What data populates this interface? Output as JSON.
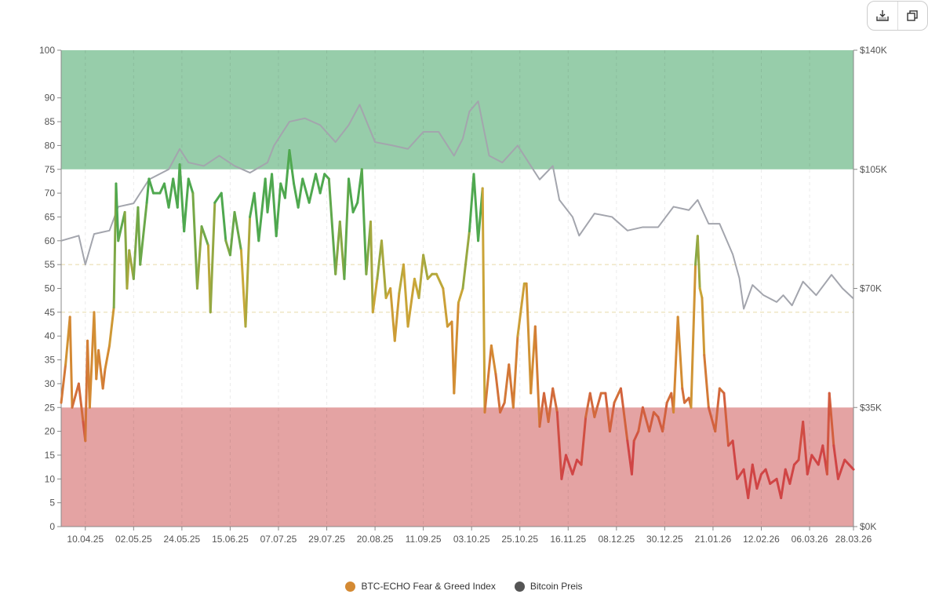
{
  "toolbar": {
    "download_icon": "download-icon",
    "copy_icon": "copy-icon"
  },
  "chart_data": {
    "type": "line",
    "title": "",
    "colors": {
      "green_zone": "#97cdaa",
      "red_zone": "#e4a3a3",
      "btc": "#a3a5ad",
      "fear": "#d04545",
      "neutral_low": "#d48a33",
      "neutral": "#c8a838",
      "greed": "#4fa84f",
      "guide": "#e8d9a8"
    },
    "x_ticks": [
      "10.04.25",
      "02.05.25",
      "24.05.25",
      "15.06.25",
      "07.07.25",
      "29.07.25",
      "20.08.25",
      "11.09.25",
      "03.10.25",
      "25.10.25",
      "16.11.25",
      "08.12.25",
      "30.12.25",
      "21.01.26",
      "12.02.26",
      "06.03.26",
      "28.03.26"
    ],
    "x_tick_days": [
      11,
      33,
      55,
      77,
      99,
      121,
      143,
      165,
      187,
      209,
      231,
      253,
      275,
      297,
      319,
      341,
      361
    ],
    "x_range_days": [
      0,
      361
    ],
    "y_left": {
      "ticks": [
        0,
        5,
        10,
        15,
        20,
        25,
        30,
        35,
        40,
        45,
        50,
        55,
        60,
        65,
        70,
        75,
        80,
        85,
        90,
        100
      ],
      "range": [
        0,
        100
      ]
    },
    "y_right": {
      "ticks": [
        "$0K",
        "$35K",
        "$70K",
        "$105K",
        "$140K"
      ],
      "tick_values": [
        0,
        35,
        70,
        105,
        140
      ],
      "range": [
        0,
        140
      ]
    },
    "zones": [
      {
        "from": 75,
        "to": 100,
        "name": "greed"
      },
      {
        "from": 0,
        "to": 25,
        "name": "fear"
      }
    ],
    "guides": [
      45,
      55
    ],
    "series": [
      {
        "name": "BTC-ECHO Fear & Greed Index",
        "axis": "left",
        "legend_color": "#d48a33",
        "points": [
          [
            0,
            26
          ],
          [
            2,
            34
          ],
          [
            4,
            44
          ],
          [
            5,
            25
          ],
          [
            8,
            30
          ],
          [
            10,
            22
          ],
          [
            11,
            18
          ],
          [
            12,
            39
          ],
          [
            13,
            25
          ],
          [
            15,
            45
          ],
          [
            16,
            31
          ],
          [
            17,
            37
          ],
          [
            19,
            29
          ],
          [
            20,
            33
          ],
          [
            22,
            38
          ],
          [
            24,
            46
          ],
          [
            25,
            72
          ],
          [
            26,
            60
          ],
          [
            29,
            66
          ],
          [
            30,
            50
          ],
          [
            31,
            58
          ],
          [
            33,
            52
          ],
          [
            35,
            67
          ],
          [
            36,
            55
          ],
          [
            39,
            68
          ],
          [
            40,
            73
          ],
          [
            42,
            70
          ],
          [
            45,
            70
          ],
          [
            47,
            72
          ],
          [
            49,
            67
          ],
          [
            51,
            73
          ],
          [
            53,
            67
          ],
          [
            54,
            76
          ],
          [
            56,
            62
          ],
          [
            58,
            73
          ],
          [
            60,
            70
          ],
          [
            62,
            50
          ],
          [
            64,
            63
          ],
          [
            67,
            59
          ],
          [
            68,
            45
          ],
          [
            70,
            68
          ],
          [
            73,
            70
          ],
          [
            75,
            60
          ],
          [
            77,
            57
          ],
          [
            79,
            66
          ],
          [
            82,
            58
          ],
          [
            84,
            42
          ],
          [
            86,
            65
          ],
          [
            88,
            70
          ],
          [
            90,
            60
          ],
          [
            93,
            73
          ],
          [
            94,
            66
          ],
          [
            96,
            74
          ],
          [
            98,
            61
          ],
          [
            100,
            72
          ],
          [
            102,
            69
          ],
          [
            104,
            79
          ],
          [
            106,
            72
          ],
          [
            108,
            67
          ],
          [
            110,
            73
          ],
          [
            113,
            68
          ],
          [
            116,
            74
          ],
          [
            118,
            70
          ],
          [
            120,
            74
          ],
          [
            122,
            73
          ],
          [
            125,
            53
          ],
          [
            127,
            64
          ],
          [
            129,
            52
          ],
          [
            131,
            73
          ],
          [
            133,
            66
          ],
          [
            135,
            68
          ],
          [
            137,
            75
          ],
          [
            139,
            53
          ],
          [
            141,
            64
          ],
          [
            142,
            45
          ],
          [
            144,
            52
          ],
          [
            146,
            60
          ],
          [
            148,
            48
          ],
          [
            150,
            50
          ],
          [
            152,
            39
          ],
          [
            154,
            49
          ],
          [
            156,
            55
          ],
          [
            158,
            42
          ],
          [
            161,
            52
          ],
          [
            163,
            48
          ],
          [
            165,
            57
          ],
          [
            167,
            52
          ],
          [
            169,
            53
          ],
          [
            171,
            53
          ],
          [
            174,
            50
          ],
          [
            176,
            42
          ],
          [
            178,
            43
          ],
          [
            179,
            28
          ],
          [
            181,
            47
          ],
          [
            183,
            50
          ],
          [
            186,
            62
          ],
          [
            188,
            74
          ],
          [
            190,
            60
          ],
          [
            192,
            71
          ],
          [
            193,
            24
          ],
          [
            196,
            38
          ],
          [
            198,
            32
          ],
          [
            200,
            24
          ],
          [
            202,
            26
          ],
          [
            204,
            34
          ],
          [
            206,
            25
          ],
          [
            208,
            40
          ],
          [
            211,
            51
          ],
          [
            212,
            51
          ],
          [
            214,
            28
          ],
          [
            216,
            42
          ],
          [
            218,
            21
          ],
          [
            220,
            28
          ],
          [
            222,
            22
          ],
          [
            224,
            29
          ],
          [
            226,
            24
          ],
          [
            228,
            10
          ],
          [
            230,
            15
          ],
          [
            233,
            11
          ],
          [
            235,
            14
          ],
          [
            237,
            13
          ],
          [
            239,
            23
          ],
          [
            241,
            28
          ],
          [
            243,
            23
          ],
          [
            246,
            28
          ],
          [
            248,
            28
          ],
          [
            250,
            20
          ],
          [
            252,
            26
          ],
          [
            254,
            28
          ],
          [
            255,
            29
          ],
          [
            258,
            18
          ],
          [
            260,
            11
          ],
          [
            261,
            18
          ],
          [
            263,
            20
          ],
          [
            265,
            25
          ],
          [
            268,
            20
          ],
          [
            270,
            24
          ],
          [
            272,
            23
          ],
          [
            274,
            20
          ],
          [
            276,
            26
          ],
          [
            278,
            28
          ],
          [
            279,
            24
          ],
          [
            281,
            44
          ],
          [
            283,
            29
          ],
          [
            284,
            26
          ],
          [
            286,
            27
          ],
          [
            287,
            25
          ],
          [
            289,
            55
          ],
          [
            290,
            61
          ],
          [
            291,
            50
          ],
          [
            292,
            48
          ],
          [
            293,
            36
          ],
          [
            295,
            25
          ],
          [
            298,
            20
          ],
          [
            300,
            29
          ],
          [
            302,
            28
          ],
          [
            304,
            17
          ],
          [
            306,
            18
          ],
          [
            308,
            10
          ],
          [
            311,
            12
          ],
          [
            313,
            6
          ],
          [
            315,
            13
          ],
          [
            317,
            8
          ],
          [
            319,
            11
          ],
          [
            321,
            12
          ],
          [
            323,
            9
          ],
          [
            326,
            10
          ],
          [
            328,
            6
          ],
          [
            330,
            12
          ],
          [
            332,
            9
          ],
          [
            334,
            13
          ],
          [
            336,
            14
          ],
          [
            338,
            22
          ],
          [
            340,
            11
          ],
          [
            342,
            15
          ],
          [
            345,
            13
          ],
          [
            347,
            17
          ],
          [
            349,
            11
          ],
          [
            350,
            28
          ],
          [
            352,
            17
          ],
          [
            354,
            10
          ],
          [
            357,
            14
          ],
          [
            359,
            13
          ],
          [
            361,
            12
          ]
        ]
      },
      {
        "name": "Bitcoin Preis",
        "axis": "right",
        "unit": "K USD",
        "legend_color": "#555555",
        "points": [
          [
            0,
            84
          ],
          [
            8,
            85.5
          ],
          [
            11,
            77
          ],
          [
            15,
            86
          ],
          [
            22,
            87
          ],
          [
            26,
            94
          ],
          [
            33,
            95
          ],
          [
            40,
            102
          ],
          [
            49,
            105
          ],
          [
            54,
            111
          ],
          [
            58,
            107
          ],
          [
            65,
            106
          ],
          [
            72,
            109
          ],
          [
            79,
            106
          ],
          [
            86,
            104
          ],
          [
            94,
            107
          ],
          [
            97,
            112
          ],
          [
            104,
            119
          ],
          [
            111,
            120
          ],
          [
            118,
            118
          ],
          [
            125,
            113
          ],
          [
            131,
            118
          ],
          [
            136,
            124
          ],
          [
            143,
            113
          ],
          [
            151,
            112
          ],
          [
            158,
            111
          ],
          [
            165,
            116
          ],
          [
            172,
            116
          ],
          [
            179,
            109
          ],
          [
            183,
            114
          ],
          [
            186,
            122
          ],
          [
            190,
            125
          ],
          [
            195,
            109
          ],
          [
            201,
            107
          ],
          [
            208,
            112
          ],
          [
            211,
            109
          ],
          [
            218,
            102
          ],
          [
            224,
            106
          ],
          [
            227,
            96
          ],
          [
            233,
            91
          ],
          [
            236,
            85.5
          ],
          [
            243,
            92
          ],
          [
            251,
            91
          ],
          [
            258,
            87
          ],
          [
            265,
            88
          ],
          [
            272,
            88
          ],
          [
            279,
            94
          ],
          [
            286,
            93
          ],
          [
            290,
            96
          ],
          [
            295,
            89
          ],
          [
            300,
            89
          ],
          [
            306,
            80
          ],
          [
            309,
            73
          ],
          [
            311,
            64
          ],
          [
            315,
            71
          ],
          [
            320,
            68
          ],
          [
            326,
            66
          ],
          [
            329,
            68
          ],
          [
            333,
            65
          ],
          [
            338,
            72
          ],
          [
            344,
            68
          ],
          [
            351,
            74
          ],
          [
            356,
            70
          ],
          [
            361,
            67
          ]
        ]
      }
    ]
  }
}
